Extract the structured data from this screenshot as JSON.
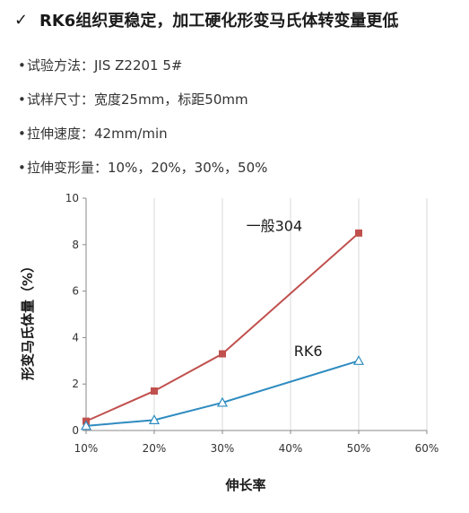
{
  "header": {
    "check_glyph": "✓",
    "title": "RK6组织更稳定，加工硬化形变马氏体转变量更低"
  },
  "bullets": [
    {
      "dot": "•",
      "text": "试验方法：JIS Z2201 5#"
    },
    {
      "dot": "•",
      "text": "试样尺寸：宽度25mm，标距50mm"
    },
    {
      "dot": "•",
      "text": "拉伸速度：42mm/min"
    },
    {
      "dot": "•",
      "text": "拉伸变形量：10%，20%，30%，50%"
    }
  ],
  "chart_data": {
    "type": "line",
    "xlabel": "伸长率",
    "ylabel": "形变马氏体量（%）",
    "x_ticks": [
      "10%",
      "20%",
      "30%",
      "40%",
      "50%",
      "60%"
    ],
    "y_ticks": [
      "0",
      "2",
      "4",
      "6",
      "8",
      "10"
    ],
    "xlim": [
      10,
      60
    ],
    "ylim": [
      0,
      10
    ],
    "grid": "vertical",
    "series": [
      {
        "name": "一般304",
        "color": "#c0504d",
        "marker": "filled-square",
        "x": [
          10,
          20,
          30,
          50
        ],
        "y": [
          0.4,
          1.7,
          3.3,
          8.5
        ]
      },
      {
        "name": "RK6",
        "color": "#2e8bc0",
        "marker": "open-triangle",
        "x": [
          10,
          20,
          30,
          50
        ],
        "y": [
          0.2,
          0.45,
          1.2,
          3.0
        ]
      }
    ]
  }
}
